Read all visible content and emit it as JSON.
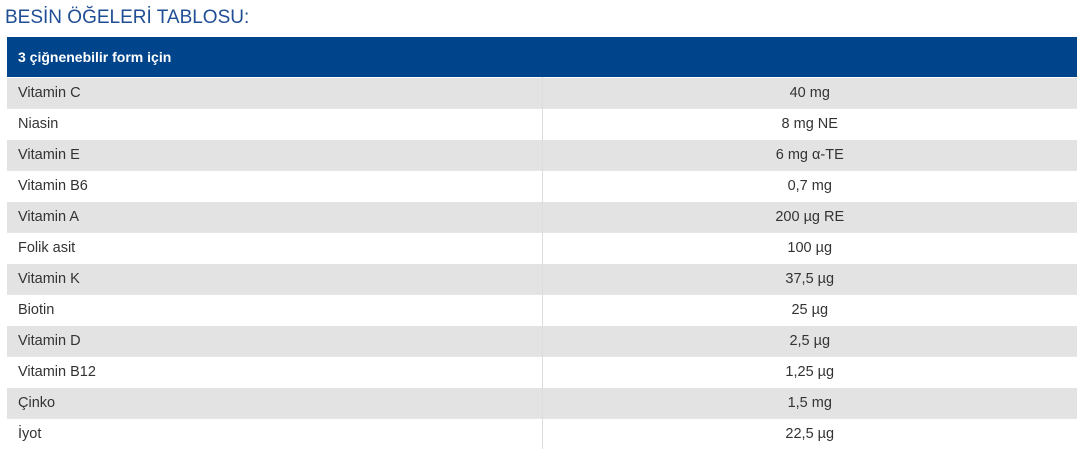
{
  "title": "BESİN ÖĞELERİ TABLOSU:",
  "table": {
    "header": "3 çiğnenebilir form için",
    "rows": [
      {
        "name": "Vitamin C",
        "amount": "40 mg"
      },
      {
        "name": "Niasin",
        "amount": "8 mg NE"
      },
      {
        "name": "Vitamin E",
        "amount": "6 mg α-TE"
      },
      {
        "name": "Vitamin B6",
        "amount": "0,7 mg"
      },
      {
        "name": "Vitamin A",
        "amount": "200 µg RE"
      },
      {
        "name": "Folik asit",
        "amount": "100 µg"
      },
      {
        "name": "Vitamin K",
        "amount": "37,5 µg"
      },
      {
        "name": "Biotin",
        "amount": "25 µg"
      },
      {
        "name": "Vitamin D",
        "amount": "2,5 µg"
      },
      {
        "name": "Vitamin B12",
        "amount": "1,25 µg"
      },
      {
        "name": "Çinko",
        "amount": "1,5 mg"
      },
      {
        "name": "İyot",
        "amount": "22,5 µg"
      }
    ]
  },
  "colors": {
    "title": "#1f4e95",
    "header_background": "#00458b",
    "row_stripe": "#e3e3e3"
  }
}
